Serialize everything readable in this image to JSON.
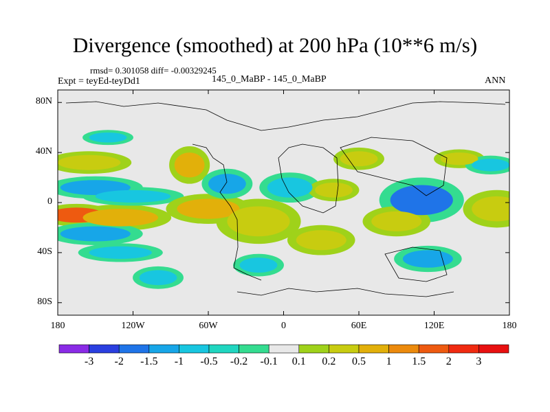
{
  "chart_data": {
    "type": "heatmap",
    "title": "Divergence (smoothed) at 200 hPa (10**6 m/s)",
    "stats_line": "rmsd= 0.301058 diff= -0.00329245",
    "experiment_label": "Expt = teyEd-teyDd1",
    "case_label": "145_0_MaBP - 145_0_MaBP",
    "season_label": "ANN",
    "x_ticks": [
      {
        "value": -180,
        "label": "180"
      },
      {
        "value": -120,
        "label": "120W"
      },
      {
        "value": -60,
        "label": "60W"
      },
      {
        "value": 0,
        "label": "0"
      },
      {
        "value": 60,
        "label": "60E"
      },
      {
        "value": 120,
        "label": "120E"
      },
      {
        "value": 180,
        "label": "180"
      }
    ],
    "y_ticks": [
      {
        "value": 80,
        "label": "80N"
      },
      {
        "value": 40,
        "label": "40N"
      },
      {
        "value": 0,
        "label": "0"
      },
      {
        "value": -40,
        "label": "40S"
      },
      {
        "value": -80,
        "label": "80S"
      }
    ],
    "xlim": [
      -180,
      180
    ],
    "ylim": [
      -90,
      90
    ],
    "colorbar": {
      "levels": [
        "-3",
        "-2",
        "-1.5",
        "-1",
        "-0.5",
        "-0.2",
        "-0.1",
        "0.1",
        "0.2",
        "0.5",
        "1",
        "1.5",
        "2",
        "3"
      ],
      "colors": [
        "#8a2be6",
        "#2a3fe0",
        "#1f74e8",
        "#17a6e8",
        "#18c6e0",
        "#20d6c0",
        "#34dc90",
        "#e8e8e8",
        "#9fd21a",
        "#c8cc10",
        "#e2b00a",
        "#ec8a0c",
        "#ee5a10",
        "#f02a10",
        "#e81010"
      ]
    },
    "blobs": [
      {
        "lon": -165,
        "lat": -10,
        "rx": 22,
        "ry": 6,
        "level": "1.5 to 2"
      },
      {
        "lon": -130,
        "lat": -12,
        "rx": 30,
        "ry": 7,
        "level": "0.5 to 1"
      },
      {
        "lon": -150,
        "lat": 12,
        "rx": 28,
        "ry": 6,
        "level": "-1 to -0.5"
      },
      {
        "lon": -150,
        "lat": -25,
        "rx": 28,
        "ry": 6,
        "level": "-1 to -0.5"
      },
      {
        "lon": -155,
        "lat": 32,
        "rx": 25,
        "ry": 6,
        "level": "0.2 to 0.5"
      },
      {
        "lon": -120,
        "lat": 5,
        "rx": 30,
        "ry": 5,
        "level": "-0.5 to -0.2"
      },
      {
        "lon": -60,
        "lat": -5,
        "rx": 25,
        "ry": 8,
        "level": "0.5 to 1"
      },
      {
        "lon": -75,
        "lat": 30,
        "rx": 12,
        "ry": 10,
        "level": "0.5 to 1"
      },
      {
        "lon": -45,
        "lat": 15,
        "rx": 15,
        "ry": 8,
        "level": "-1 to -0.5"
      },
      {
        "lon": -20,
        "lat": -15,
        "rx": 25,
        "ry": 12,
        "level": "0.2 to 0.5"
      },
      {
        "lon": 5,
        "lat": 12,
        "rx": 18,
        "ry": 8,
        "level": "-0.5 to -0.2"
      },
      {
        "lon": 40,
        "lat": 10,
        "rx": 15,
        "ry": 6,
        "level": "0.2 to 0.5"
      },
      {
        "lon": 110,
        "lat": 2,
        "rx": 25,
        "ry": 12,
        "level": "-1.5 to -1"
      },
      {
        "lon": 90,
        "lat": -15,
        "rx": 20,
        "ry": 8,
        "level": "0.2 to 0.5"
      },
      {
        "lon": 115,
        "lat": -45,
        "rx": 20,
        "ry": 7,
        "level": "-1 to -0.5"
      },
      {
        "lon": 170,
        "lat": -5,
        "rx": 20,
        "ry": 10,
        "level": "0.2 to 0.5"
      },
      {
        "lon": 140,
        "lat": 35,
        "rx": 15,
        "ry": 5,
        "level": "0.2 to 0.5"
      },
      {
        "lon": 165,
        "lat": 30,
        "rx": 15,
        "ry": 5,
        "level": "-0.5 to -0.2"
      },
      {
        "lon": -20,
        "lat": -50,
        "rx": 15,
        "ry": 6,
        "level": "-0.5 to -0.2"
      },
      {
        "lon": -130,
        "lat": -40,
        "rx": 25,
        "ry": 5,
        "level": "-0.5 to -0.2"
      },
      {
        "lon": -140,
        "lat": 52,
        "rx": 15,
        "ry": 4,
        "level": "-0.5 to -0.2"
      },
      {
        "lon": 30,
        "lat": -30,
        "rx": 20,
        "ry": 8,
        "level": "0.2 to 0.5"
      },
      {
        "lon": -100,
        "lat": -60,
        "rx": 15,
        "ry": 6,
        "level": "-0.5 to -0.2"
      },
      {
        "lon": 60,
        "lat": 35,
        "rx": 15,
        "ry": 6,
        "level": "0.2 to 0.5"
      }
    ]
  }
}
